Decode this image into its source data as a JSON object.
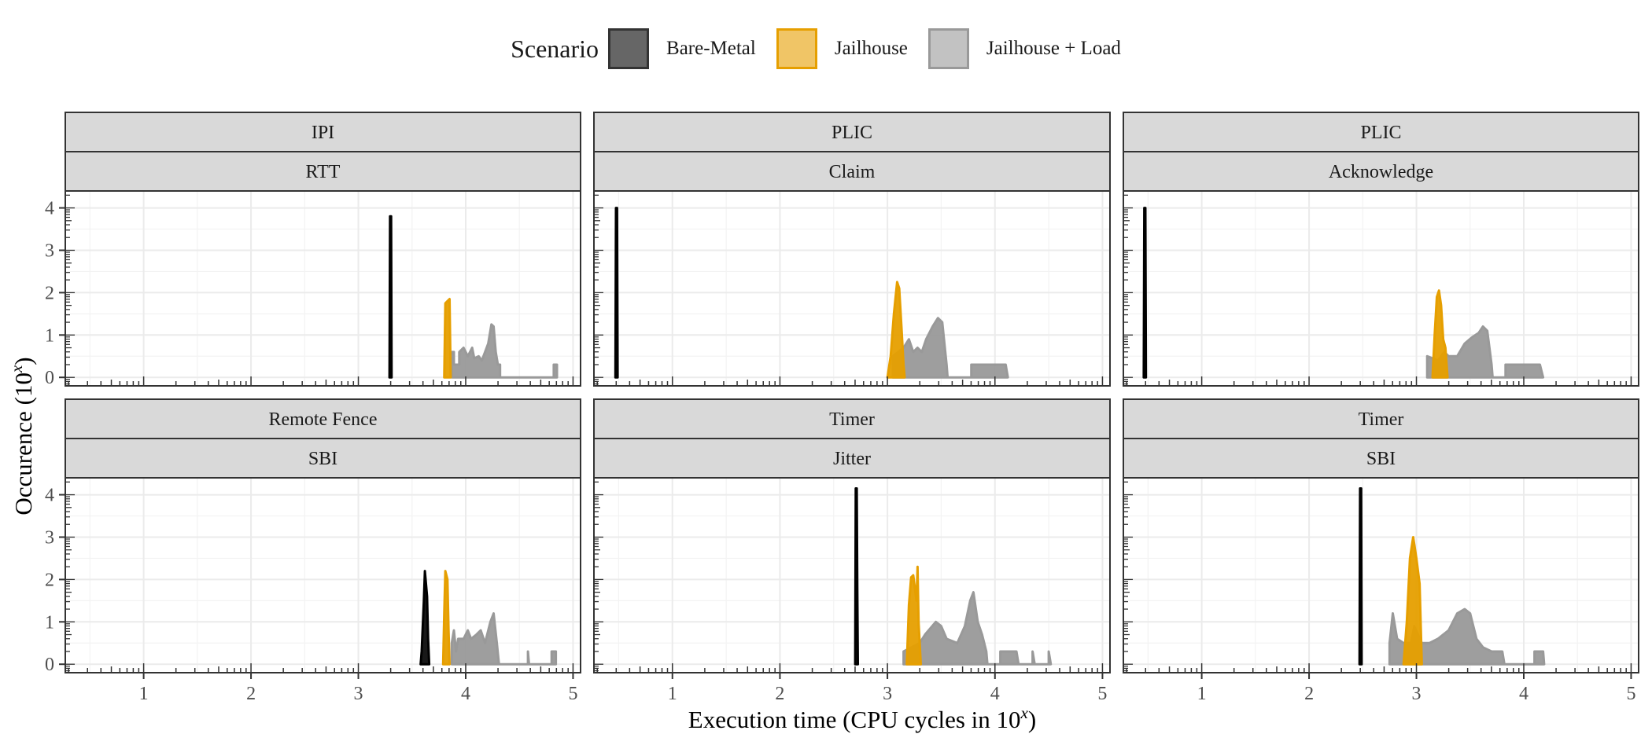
{
  "chart_data": {
    "type": "area",
    "kind": "faceted log-log histogram (overlaid density-like histograms)",
    "legend": {
      "title": "Scenario",
      "placement": "top-center",
      "entries": [
        {
          "name": "Bare-Metal",
          "fill": "#000000",
          "fill_opacity": 0.6,
          "stroke": "#333333"
        },
        {
          "name": "Jailhouse",
          "fill": "#E69F00",
          "fill_opacity": 0.6,
          "stroke": "#E69F00"
        },
        {
          "name": "Jailhouse + Load",
          "fill": "#999999",
          "fill_opacity": 0.6,
          "stroke": "#999999"
        }
      ]
    },
    "xlabel": "Execution time (CPU cycles in 10",
    "xlabel_sup": "x",
    "xlabel_tail": ")",
    "ylabel": "Occurence (10",
    "ylabel_sup": "x",
    "ylabel_tail": ")",
    "xlim": [
      0.27,
      5.07
    ],
    "ylim": [
      -0.2,
      4.4
    ],
    "x_ticks": [
      1,
      2,
      3,
      4,
      5
    ],
    "y_ticks": [
      0,
      1,
      2,
      3,
      4
    ],
    "grid": true,
    "colors": {
      "Bare-Metal": "#000000",
      "Jailhouse": "#E69F00",
      "Jailhouse + Load": "#999999",
      "strip_bg": "#D9D9D9",
      "strip_border": "#333333",
      "grid": "#EBEBEB"
    },
    "panels": [
      {
        "strip_top": "IPI",
        "strip_bottom": "RTT",
        "row": 0,
        "col": 0,
        "series": {
          "Bare-Metal": [
            [
              3.29,
              0
            ],
            [
              3.295,
              3.8
            ],
            [
              3.305,
              3.8
            ],
            [
              3.31,
              0
            ]
          ],
          "Jailhouse": [
            [
              3.8,
              0
            ],
            [
              3.81,
              1.75
            ],
            [
              3.83,
              1.8
            ],
            [
              3.85,
              1.85
            ],
            [
              3.86,
              0
            ]
          ],
          "Jailhouse + Load": [
            [
              3.87,
              0
            ],
            [
              3.87,
              0.6
            ],
            [
              3.89,
              0.6
            ],
            [
              3.89,
              0.3
            ],
            [
              3.94,
              0.3
            ],
            [
              3.94,
              0.6
            ],
            [
              3.98,
              0.7
            ],
            [
              4.02,
              0.5
            ],
            [
              4.06,
              0.7
            ],
            [
              4.08,
              0.45
            ],
            [
              4.12,
              0.5
            ],
            [
              4.15,
              0.4
            ],
            [
              4.18,
              0.6
            ],
            [
              4.21,
              0.8
            ],
            [
              4.24,
              1.25
            ],
            [
              4.26,
              1.2
            ],
            [
              4.28,
              0.6
            ],
            [
              4.3,
              0.3
            ],
            [
              4.32,
              0.3
            ],
            [
              4.32,
              0
            ],
            [
              4.82,
              0
            ],
            [
              4.82,
              0.3
            ],
            [
              4.85,
              0.3
            ],
            [
              4.85,
              0
            ]
          ]
        }
      },
      {
        "strip_top": "PLIC",
        "strip_bottom": "Claim",
        "row": 0,
        "col": 1,
        "series": {
          "Bare-Metal": [
            [
              0.47,
              0
            ],
            [
              0.475,
              4.0
            ],
            [
              0.485,
              4.0
            ],
            [
              0.49,
              0
            ]
          ],
          "Jailhouse": [
            [
              3.0,
              0
            ],
            [
              3.03,
              0.5
            ],
            [
              3.06,
              1.5
            ],
            [
              3.09,
              2.25
            ],
            [
              3.11,
              2.1
            ],
            [
              3.13,
              1.2
            ],
            [
              3.15,
              0.3
            ],
            [
              3.16,
              0
            ]
          ],
          "Jailhouse + Load": [
            [
              3.05,
              0
            ],
            [
              3.05,
              0.5
            ],
            [
              3.1,
              0.6
            ],
            [
              3.15,
              0.7
            ],
            [
              3.2,
              0.9
            ],
            [
              3.24,
              0.6
            ],
            [
              3.28,
              0.7
            ],
            [
              3.32,
              0.6
            ],
            [
              3.36,
              0.9
            ],
            [
              3.42,
              1.2
            ],
            [
              3.47,
              1.4
            ],
            [
              3.51,
              1.3
            ],
            [
              3.55,
              0.3
            ],
            [
              3.56,
              0
            ],
            [
              3.78,
              0
            ],
            [
              3.78,
              0.3
            ],
            [
              3.9,
              0.3
            ],
            [
              4.05,
              0.3
            ],
            [
              4.1,
              0.3
            ],
            [
              4.12,
              0
            ]
          ]
        }
      },
      {
        "strip_top": "PLIC",
        "strip_bottom": "Acknowledge",
        "row": 0,
        "col": 2,
        "series": {
          "Bare-Metal": [
            [
              0.46,
              0
            ],
            [
              0.465,
              4.0
            ],
            [
              0.475,
              4.0
            ],
            [
              0.48,
              0
            ]
          ],
          "Jailhouse": [
            [
              3.15,
              0
            ],
            [
              3.17,
              1.0
            ],
            [
              3.19,
              1.9
            ],
            [
              3.21,
              2.05
            ],
            [
              3.23,
              1.7
            ],
            [
              3.25,
              0.9
            ],
            [
              3.27,
              0.7
            ],
            [
              3.29,
              0
            ]
          ],
          "Jailhouse + Load": [
            [
              3.1,
              0
            ],
            [
              3.1,
              0.5
            ],
            [
              3.2,
              0.4
            ],
            [
              3.26,
              0.6
            ],
            [
              3.3,
              0.5
            ],
            [
              3.38,
              0.5
            ],
            [
              3.45,
              0.8
            ],
            [
              3.52,
              0.95
            ],
            [
              3.58,
              1.05
            ],
            [
              3.62,
              1.2
            ],
            [
              3.66,
              1.1
            ],
            [
              3.7,
              0.3
            ],
            [
              3.71,
              0
            ],
            [
              3.83,
              0
            ],
            [
              3.83,
              0.3
            ],
            [
              3.96,
              0.3
            ],
            [
              4.15,
              0.3
            ],
            [
              4.18,
              0
            ]
          ]
        }
      },
      {
        "strip_top": "Remote Fence",
        "strip_bottom": "SBI",
        "row": 1,
        "col": 0,
        "series": {
          "Bare-Metal": [
            [
              3.58,
              0
            ],
            [
              3.59,
              0.3
            ],
            [
              3.61,
              1.5
            ],
            [
              3.62,
              2.2
            ],
            [
              3.64,
              1.6
            ],
            [
              3.65,
              0.6
            ],
            [
              3.66,
              0
            ]
          ],
          "Jailhouse": [
            [
              3.79,
              0
            ],
            [
              3.8,
              1.2
            ],
            [
              3.81,
              2.2
            ],
            [
              3.83,
              2.0
            ],
            [
              3.84,
              0.8
            ],
            [
              3.85,
              0
            ]
          ],
          "Jailhouse + Load": [
            [
              3.87,
              0
            ],
            [
              3.87,
              0.5
            ],
            [
              3.89,
              0.8
            ],
            [
              3.91,
              0.3
            ],
            [
              3.93,
              0.6
            ],
            [
              3.98,
              0.6
            ],
            [
              4.02,
              0.8
            ],
            [
              4.05,
              0.6
            ],
            [
              4.1,
              0.7
            ],
            [
              4.14,
              0.8
            ],
            [
              4.18,
              0.5
            ],
            [
              4.23,
              1.0
            ],
            [
              4.26,
              1.2
            ],
            [
              4.29,
              0.5
            ],
            [
              4.31,
              0
            ],
            [
              4.58,
              0
            ],
            [
              4.58,
              0.3
            ],
            [
              4.59,
              0
            ],
            [
              4.8,
              0
            ],
            [
              4.8,
              0.3
            ],
            [
              4.84,
              0.3
            ],
            [
              4.84,
              0
            ]
          ]
        }
      },
      {
        "strip_top": "Timer",
        "strip_bottom": "Jitter",
        "row": 1,
        "col": 1,
        "series": {
          "Bare-Metal": [
            [
              2.7,
              0
            ],
            [
              2.705,
              4.15
            ],
            [
              2.715,
              4.15
            ],
            [
              2.72,
              1.8
            ],
            [
              2.725,
              0
            ]
          ],
          "Jailhouse": [
            [
              3.18,
              0
            ],
            [
              3.2,
              1.4
            ],
            [
              3.22,
              2.05
            ],
            [
              3.24,
              2.1
            ],
            [
              3.27,
              1.5
            ],
            [
              3.28,
              2.3
            ],
            [
              3.29,
              1.0
            ],
            [
              3.31,
              0
            ]
          ],
          "Jailhouse + Load": [
            [
              3.15,
              0
            ],
            [
              3.15,
              0.3
            ],
            [
              3.3,
              0.5
            ],
            [
              3.35,
              0.7
            ],
            [
              3.45,
              1.0
            ],
            [
              3.5,
              0.9
            ],
            [
              3.55,
              0.6
            ],
            [
              3.65,
              0.5
            ],
            [
              3.72,
              0.9
            ],
            [
              3.77,
              1.5
            ],
            [
              3.8,
              1.7
            ],
            [
              3.84,
              1.0
            ],
            [
              3.88,
              0.7
            ],
            [
              3.92,
              0.3
            ],
            [
              3.93,
              0
            ],
            [
              4.05,
              0
            ],
            [
              4.05,
              0.3
            ],
            [
              4.2,
              0.3
            ],
            [
              4.22,
              0
            ],
            [
              4.35,
              0
            ],
            [
              4.35,
              0.3
            ],
            [
              4.37,
              0
            ],
            [
              4.5,
              0
            ],
            [
              4.5,
              0.3
            ],
            [
              4.52,
              0
            ]
          ]
        }
      },
      {
        "strip_top": "Timer",
        "strip_bottom": "SBI",
        "row": 1,
        "col": 2,
        "series": {
          "Bare-Metal": [
            [
              2.47,
              0
            ],
            [
              2.475,
              4.15
            ],
            [
              2.485,
              4.15
            ],
            [
              2.49,
              0
            ]
          ],
          "Jailhouse": [
            [
              2.88,
              0
            ],
            [
              2.91,
              1.0
            ],
            [
              2.94,
              2.5
            ],
            [
              2.97,
              3.0
            ],
            [
              3.0,
              2.5
            ],
            [
              3.03,
              1.9
            ],
            [
              3.05,
              0
            ]
          ],
          "Jailhouse + Load": [
            [
              2.75,
              0
            ],
            [
              2.75,
              0.5
            ],
            [
              2.78,
              1.2
            ],
            [
              2.82,
              0.6
            ],
            [
              2.88,
              0.5
            ],
            [
              2.95,
              0.5
            ],
            [
              2.98,
              0.9
            ],
            [
              3.05,
              0.5
            ],
            [
              3.12,
              0.5
            ],
            [
              3.2,
              0.6
            ],
            [
              3.3,
              0.8
            ],
            [
              3.38,
              1.2
            ],
            [
              3.45,
              1.3
            ],
            [
              3.5,
              1.2
            ],
            [
              3.56,
              0.6
            ],
            [
              3.62,
              0.4
            ],
            [
              3.7,
              0.3
            ],
            [
              3.8,
              0.3
            ],
            [
              3.82,
              0
            ],
            [
              4.1,
              0
            ],
            [
              4.1,
              0.3
            ],
            [
              4.18,
              0.3
            ],
            [
              4.19,
              0
            ]
          ]
        }
      }
    ]
  }
}
